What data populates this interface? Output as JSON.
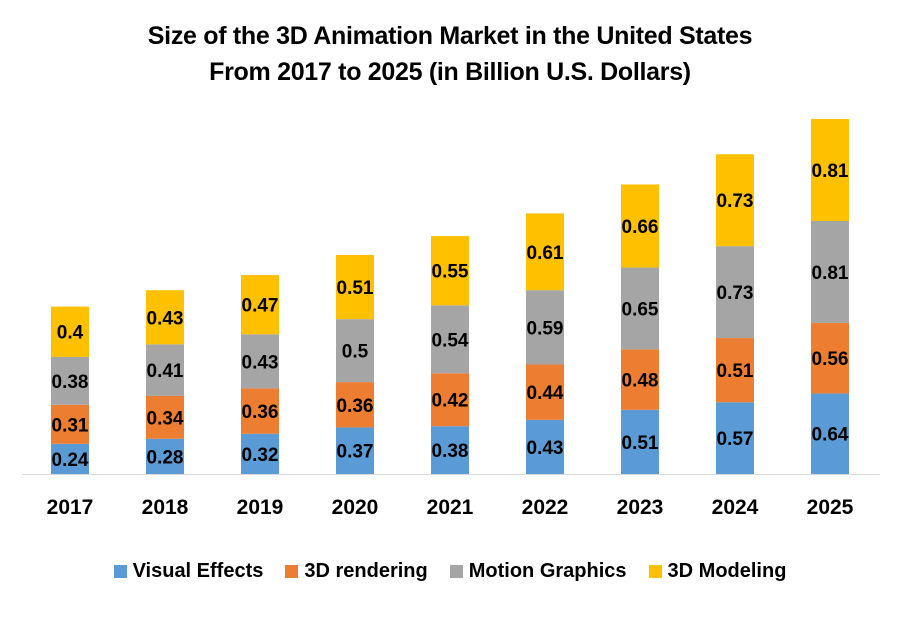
{
  "chart_data": {
    "type": "bar",
    "stacked": true,
    "title": "Size of the 3D Animation Market in the United States From 2017 to 2025 (in Billion U.S. Dollars)",
    "title_lines": [
      "Size of the 3D Animation Market in the United States",
      "From 2017 to 2025 (in Billion U.S. Dollars)"
    ],
    "xlabel": "",
    "ylabel": "",
    "categories": [
      "2017",
      "2018",
      "2019",
      "2020",
      "2021",
      "2022",
      "2023",
      "2024",
      "2025"
    ],
    "series": [
      {
        "name": "Visual Effects",
        "color": "#5b9bd5",
        "values": [
          0.24,
          0.28,
          0.32,
          0.37,
          0.38,
          0.43,
          0.51,
          0.57,
          0.64
        ]
      },
      {
        "name": "3D rendering",
        "color": "#ed7d31",
        "values": [
          0.31,
          0.34,
          0.36,
          0.36,
          0.42,
          0.44,
          0.48,
          0.51,
          0.56
        ]
      },
      {
        "name": "Motion Graphics",
        "color": "#a5a5a5",
        "values": [
          0.38,
          0.41,
          0.43,
          0.5,
          0.54,
          0.59,
          0.65,
          0.73,
          0.81
        ]
      },
      {
        "name": "3D Modeling",
        "color": "#ffc000",
        "values": [
          0.4,
          0.43,
          0.47,
          0.51,
          0.55,
          0.61,
          0.66,
          0.73,
          0.81
        ]
      }
    ],
    "ylim": [
      0,
      2.82
    ],
    "y_axis_visible": false,
    "grid": false,
    "data_labels": true,
    "legend_position": "bottom"
  }
}
